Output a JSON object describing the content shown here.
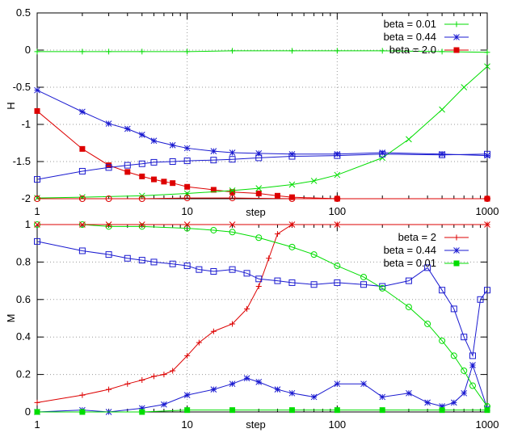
{
  "chart_data": [
    {
      "type": "scatter",
      "xscale": "log",
      "xlim": [
        1,
        1000
      ],
      "ylim": [
        -2,
        0.5
      ],
      "xlabel": "step",
      "ylabel": "H",
      "xticks": [
        1,
        10,
        100,
        1000
      ],
      "yticks": [
        0.5,
        0,
        -0.5,
        -1,
        -1.5,
        -2
      ],
      "grid": true,
      "legend": "top-right",
      "series": [
        {
          "name": "beta = 0.01",
          "color": "#00dd00",
          "marker": "plus",
          "x": [
            1,
            2,
            3,
            5,
            10,
            20,
            50,
            100,
            200,
            500,
            1000
          ],
          "y": [
            -0.02,
            -0.02,
            -0.02,
            -0.02,
            -0.02,
            -0.01,
            -0.01,
            -0.01,
            -0.01,
            -0.02,
            -0.03
          ]
        },
        {
          "name": "beta = 0.44",
          "color": "#1a1ad0",
          "marker": "star",
          "x": [
            1,
            2,
            3,
            4,
            5,
            6,
            8,
            10,
            15,
            20,
            30,
            50,
            100,
            200,
            500,
            1000
          ],
          "y": [
            -0.54,
            -0.83,
            -0.99,
            -1.06,
            -1.14,
            -1.22,
            -1.28,
            -1.32,
            -1.36,
            -1.38,
            -1.39,
            -1.4,
            -1.4,
            -1.38,
            -1.4,
            -1.42
          ]
        },
        {
          "name": "beta = 2.0",
          "color": "#dd0000",
          "marker": "filled-square",
          "x": [
            1,
            2,
            3,
            4,
            5,
            6,
            7,
            8,
            10,
            15,
            20,
            30,
            40,
            50,
            100,
            1000
          ],
          "y": [
            -0.82,
            -1.33,
            -1.55,
            -1.64,
            -1.7,
            -1.74,
            -1.77,
            -1.79,
            -1.84,
            -1.88,
            -1.91,
            -1.93,
            -1.96,
            -1.98,
            -2.0,
            -2.0
          ]
        },
        {
          "name": "",
          "color": "#00dd00",
          "marker": "x",
          "x": [
            1,
            2,
            5,
            10,
            20,
            30,
            50,
            70,
            100,
            200,
            300,
            500,
            700,
            1000
          ],
          "y": [
            -1.99,
            -1.98,
            -1.96,
            -1.93,
            -1.89,
            -1.86,
            -1.81,
            -1.76,
            -1.68,
            -1.45,
            -1.2,
            -0.8,
            -0.5,
            -0.22
          ]
        },
        {
          "name": "",
          "color": "#1a1ad0",
          "marker": "open-square",
          "x": [
            1,
            2,
            3,
            4,
            5,
            6,
            8,
            10,
            15,
            20,
            30,
            50,
            100,
            200,
            500,
            1000
          ],
          "y": [
            -1.74,
            -1.63,
            -1.58,
            -1.55,
            -1.53,
            -1.51,
            -1.5,
            -1.49,
            -1.48,
            -1.47,
            -1.45,
            -1.43,
            -1.42,
            -1.4,
            -1.41,
            -1.4
          ]
        },
        {
          "name": "",
          "color": "#dd0000",
          "marker": "open-circle",
          "x": [
            1,
            2,
            3,
            5,
            10,
            20,
            50,
            100,
            1000
          ],
          "y": [
            -2.0,
            -2.0,
            -2.0,
            -2.0,
            -1.99,
            -1.99,
            -2.0,
            -2.0,
            -2.0
          ]
        }
      ]
    },
    {
      "type": "scatter",
      "xscale": "log",
      "xlim": [
        1,
        1000
      ],
      "ylim": [
        0,
        1
      ],
      "xlabel": "step",
      "ylabel": "M",
      "xticks": [
        1,
        10,
        100,
        1000
      ],
      "yticks": [
        1,
        0.8,
        0.6,
        0.4,
        0.2,
        0
      ],
      "grid": true,
      "legend": "top-right",
      "series": [
        {
          "name": "beta = 2",
          "color": "#dd0000",
          "marker": "plus",
          "x": [
            1,
            2,
            3,
            4,
            5,
            6,
            7,
            8,
            10,
            12,
            15,
            20,
            25,
            30,
            35,
            40,
            50,
            100,
            1000
          ],
          "y": [
            0.05,
            0.09,
            0.12,
            0.15,
            0.17,
            0.19,
            0.2,
            0.22,
            0.3,
            0.37,
            0.43,
            0.47,
            0.55,
            0.67,
            0.82,
            0.95,
            1.0,
            1.0,
            1.0
          ]
        },
        {
          "name": "beta = 0.44",
          "color": "#1a1ad0",
          "marker": "star",
          "x": [
            1,
            2,
            3,
            5,
            7,
            10,
            15,
            20,
            25,
            30,
            40,
            50,
            70,
            100,
            150,
            200,
            300,
            400,
            500,
            600,
            700,
            800,
            1000
          ],
          "y": [
            0.0,
            0.01,
            0.0,
            0.02,
            0.04,
            0.09,
            0.12,
            0.15,
            0.18,
            0.16,
            0.12,
            0.1,
            0.08,
            0.15,
            0.15,
            0.08,
            0.1,
            0.05,
            0.03,
            0.05,
            0.1,
            0.25,
            0.02
          ]
        },
        {
          "name": "beta = 0.01",
          "color": "#00dd00",
          "marker": "filled-square",
          "x": [
            1,
            2,
            5,
            10,
            20,
            50,
            100,
            200,
            500,
            1000
          ],
          "y": [
            0.0,
            0.0,
            0.0,
            0.01,
            0.01,
            0.01,
            0.01,
            0.01,
            0.01,
            0.01
          ]
        },
        {
          "name": "",
          "color": "#1a1ad0",
          "marker": "open-square",
          "x": [
            1,
            2,
            3,
            4,
            5,
            6,
            8,
            10,
            12,
            15,
            20,
            25,
            30,
            40,
            50,
            70,
            100,
            150,
            200,
            300,
            400,
            500,
            600,
            700,
            800,
            900,
            1000
          ],
          "y": [
            0.91,
            0.86,
            0.84,
            0.82,
            0.81,
            0.8,
            0.79,
            0.78,
            0.76,
            0.75,
            0.76,
            0.74,
            0.71,
            0.7,
            0.69,
            0.68,
            0.69,
            0.68,
            0.67,
            0.7,
            0.77,
            0.65,
            0.55,
            0.4,
            0.3,
            0.6,
            0.65
          ]
        },
        {
          "name": "",
          "color": "#00dd00",
          "marker": "open-circle",
          "x": [
            1,
            2,
            3,
            5,
            10,
            15,
            20,
            30,
            50,
            70,
            100,
            150,
            200,
            300,
            400,
            500,
            600,
            700,
            800,
            1000
          ],
          "y": [
            1.0,
            1.0,
            0.99,
            0.99,
            0.98,
            0.97,
            0.96,
            0.93,
            0.88,
            0.84,
            0.78,
            0.72,
            0.66,
            0.56,
            0.47,
            0.38,
            0.3,
            0.22,
            0.14,
            0.03
          ]
        },
        {
          "name": "",
          "color": "#dd0000",
          "marker": "x",
          "x": [
            1,
            2,
            3,
            5,
            10,
            20,
            50,
            100,
            1000
          ],
          "y": [
            1.0,
            1.0,
            1.0,
            1.0,
            1.0,
            1.0,
            1.0,
            1.0,
            1.0
          ]
        }
      ]
    }
  ]
}
